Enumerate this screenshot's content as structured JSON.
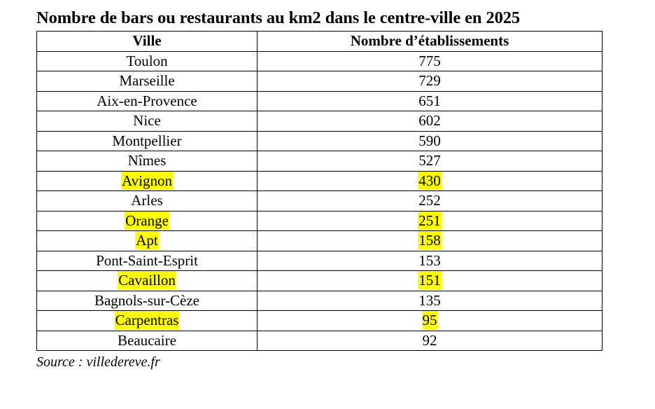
{
  "title": "Nombre de bars ou restaurants au km2 dans le centre-ville en 2025",
  "table": {
    "headers": [
      "Ville",
      "Nombre d’établissements"
    ],
    "rows": [
      {
        "city": "Toulon",
        "count": "775",
        "highlighted": false
      },
      {
        "city": "Marseille",
        "count": "729",
        "highlighted": false
      },
      {
        "city": "Aix-en-Provence",
        "count": "651",
        "highlighted": false
      },
      {
        "city": "Nice",
        "count": "602",
        "highlighted": false
      },
      {
        "city": "Montpellier",
        "count": "590",
        "highlighted": false
      },
      {
        "city": "Nîmes",
        "count": "527",
        "highlighted": false
      },
      {
        "city": "Avignon",
        "count": "430",
        "highlighted": true
      },
      {
        "city": "Arles",
        "count": "252",
        "highlighted": false
      },
      {
        "city": "Orange",
        "count": "251",
        "highlighted": true
      },
      {
        "city": "Apt",
        "count": "158",
        "highlighted": true
      },
      {
        "city": "Pont-Saint-Esprit",
        "count": "153",
        "highlighted": false
      },
      {
        "city": "Cavaillon",
        "count": "151",
        "highlighted": true
      },
      {
        "city": "Bagnols-sur-Cèze",
        "count": "135",
        "highlighted": false
      },
      {
        "city": "Carpentras",
        "count": "95",
        "highlighted": true
      },
      {
        "city": "Beaucaire",
        "count": "92",
        "highlighted": false
      }
    ],
    "highlight_color": "#ffff00"
  },
  "source": "Source : villedereve.fr"
}
